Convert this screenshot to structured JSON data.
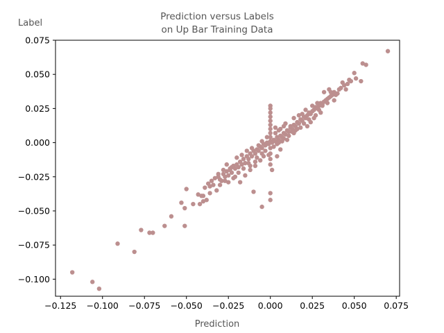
{
  "chart_data": {
    "type": "scatter",
    "title": [
      "Prediction versus Labels",
      "on Up Bar Training Data"
    ],
    "xlabel": "Prediction",
    "ylabel": "Label",
    "xlim": [
      -0.128,
      0.077
    ],
    "ylim": [
      -0.1125,
      0.075
    ],
    "x_ticks": [
      -0.125,
      -0.1,
      -0.075,
      -0.05,
      -0.025,
      0.0,
      0.025,
      0.05,
      0.075
    ],
    "x_tick_labels": [
      "−0.125",
      "−0.100",
      "−0.075",
      "−0.050",
      "−0.025",
      "0.000",
      "0.025",
      "0.050",
      "0.075"
    ],
    "y_ticks": [
      -0.1,
      -0.075,
      -0.05,
      -0.025,
      0.0,
      0.025,
      0.05,
      0.075
    ],
    "y_tick_labels": [
      "−0.100",
      "−0.075",
      "−0.050",
      "−0.025",
      "0.000",
      "0.025",
      "0.050",
      "0.075"
    ],
    "grid": false,
    "marker_color": "#bc8f8f",
    "points": [
      [
        -0.118,
        -0.095
      ],
      [
        -0.106,
        -0.102
      ],
      [
        -0.102,
        -0.107
      ],
      [
        -0.091,
        -0.074
      ],
      [
        -0.081,
        -0.08
      ],
      [
        -0.077,
        -0.064
      ],
      [
        -0.072,
        -0.066
      ],
      [
        -0.07,
        -0.066
      ],
      [
        -0.063,
        -0.061
      ],
      [
        -0.059,
        -0.054
      ],
      [
        -0.053,
        -0.044
      ],
      [
        -0.051,
        -0.048
      ],
      [
        -0.051,
        -0.061
      ],
      [
        -0.05,
        -0.034
      ],
      [
        -0.046,
        -0.045
      ],
      [
        -0.043,
        -0.038
      ],
      [
        -0.042,
        -0.045
      ],
      [
        -0.04,
        -0.039
      ],
      [
        -0.04,
        -0.043
      ],
      [
        -0.038,
        -0.042
      ],
      [
        -0.037,
        -0.03
      ],
      [
        -0.036,
        -0.032
      ],
      [
        -0.035,
        -0.028
      ],
      [
        -0.034,
        -0.031
      ],
      [
        -0.032,
        -0.035
      ],
      [
        -0.031,
        -0.025
      ],
      [
        -0.03,
        -0.027
      ],
      [
        -0.029,
        -0.028
      ],
      [
        -0.028,
        -0.023
      ],
      [
        -0.027,
        -0.025
      ],
      [
        -0.026,
        -0.021
      ],
      [
        -0.025,
        -0.024
      ],
      [
        -0.024,
        -0.02
      ],
      [
        -0.023,
        -0.022
      ],
      [
        -0.022,
        -0.017
      ],
      [
        -0.021,
        -0.019
      ],
      [
        -0.02,
        -0.016
      ],
      [
        -0.019,
        -0.018
      ],
      [
        -0.018,
        -0.014
      ],
      [
        -0.017,
        -0.016
      ],
      [
        -0.016,
        -0.012
      ],
      [
        -0.015,
        -0.015
      ],
      [
        -0.014,
        -0.01
      ],
      [
        -0.013,
        -0.012
      ],
      [
        -0.012,
        -0.008
      ],
      [
        -0.011,
        -0.01
      ],
      [
        -0.01,
        -0.006
      ],
      [
        -0.009,
        -0.008
      ],
      [
        -0.008,
        -0.005
      ],
      [
        -0.007,
        -0.006
      ],
      [
        -0.006,
        -0.003
      ],
      [
        -0.005,
        -0.004
      ],
      [
        -0.004,
        -0.001
      ],
      [
        -0.003,
        -0.002
      ],
      [
        -0.002,
        0.0
      ],
      [
        -0.001,
        -0.001
      ],
      [
        0.0,
        0.001
      ],
      [
        0.001,
        0.0
      ],
      [
        0.002,
        0.002
      ],
      [
        0.003,
        0.001
      ],
      [
        0.004,
        0.004
      ],
      [
        0.005,
        0.002
      ],
      [
        0.006,
        0.005
      ],
      [
        0.007,
        0.004
      ],
      [
        0.008,
        0.007
      ],
      [
        0.009,
        0.006
      ],
      [
        0.01,
        0.009
      ],
      [
        0.011,
        0.008
      ],
      [
        0.012,
        0.011
      ],
      [
        0.013,
        0.01
      ],
      [
        0.014,
        0.013
      ],
      [
        0.015,
        0.012
      ],
      [
        0.016,
        0.015
      ],
      [
        0.017,
        0.014
      ],
      [
        0.018,
        0.017
      ],
      [
        0.019,
        0.016
      ],
      [
        0.02,
        0.019
      ],
      [
        0.021,
        0.018
      ],
      [
        0.022,
        0.02
      ],
      [
        0.023,
        0.022
      ],
      [
        0.024,
        0.021
      ],
      [
        0.025,
        0.023
      ],
      [
        0.026,
        0.024
      ],
      [
        0.027,
        0.026
      ],
      [
        0.028,
        0.025
      ],
      [
        0.029,
        0.027
      ],
      [
        0.03,
        0.029
      ],
      [
        0.031,
        0.028
      ],
      [
        0.032,
        0.03
      ],
      [
        0.033,
        0.031
      ],
      [
        0.034,
        0.032
      ],
      [
        0.035,
        0.033
      ],
      [
        0.036,
        0.034
      ],
      [
        0.037,
        0.035
      ],
      [
        0.038,
        0.037
      ],
      [
        0.04,
        0.036
      ],
      [
        0.042,
        0.04
      ],
      [
        0.044,
        0.042
      ],
      [
        0.045,
        0.039
      ],
      [
        0.046,
        0.043
      ],
      [
        0.048,
        0.045
      ],
      [
        0.05,
        0.051
      ],
      [
        0.051,
        0.047
      ],
      [
        0.054,
        0.045
      ],
      [
        0.055,
        0.058
      ],
      [
        0.057,
        0.057
      ],
      [
        0.07,
        0.067
      ],
      [
        -0.015,
        -0.024
      ],
      [
        -0.018,
        -0.029
      ],
      [
        -0.012,
        -0.02
      ],
      [
        -0.009,
        -0.017
      ],
      [
        -0.006,
        -0.013
      ],
      [
        -0.004,
        -0.01
      ],
      [
        -0.01,
        -0.036
      ],
      [
        -0.005,
        -0.047
      ],
      [
        0.0,
        -0.042
      ],
      [
        0.0,
        -0.037
      ],
      [
        0.0,
        0.027
      ],
      [
        0.0,
        0.025
      ],
      [
        0.0,
        0.022
      ],
      [
        0.0,
        0.019
      ],
      [
        0.0,
        0.016
      ],
      [
        0.0,
        0.013
      ],
      [
        0.0,
        0.01
      ],
      [
        0.0,
        0.007
      ],
      [
        0.0,
        0.004
      ],
      [
        0.0,
        -0.004
      ],
      [
        0.0,
        -0.008
      ],
      [
        0.0,
        -0.012
      ],
      [
        0.0,
        -0.016
      ],
      [
        0.001,
        -0.02
      ],
      [
        0.004,
        -0.01
      ],
      [
        0.006,
        -0.005
      ],
      [
        0.01,
        0.002
      ],
      [
        0.012,
        0.012
      ],
      [
        0.014,
        0.007
      ],
      [
        0.016,
        0.01
      ],
      [
        0.019,
        0.021
      ],
      [
        0.022,
        0.012
      ],
      [
        0.024,
        0.015
      ],
      [
        0.027,
        0.02
      ],
      [
        0.03,
        0.022
      ],
      [
        0.032,
        0.037
      ],
      [
        0.035,
        0.039
      ],
      [
        0.038,
        0.031
      ],
      [
        0.041,
        0.039
      ],
      [
        -0.02,
        -0.011
      ],
      [
        -0.023,
        -0.018
      ],
      [
        -0.026,
        -0.016
      ],
      [
        -0.028,
        -0.02
      ],
      [
        -0.031,
        -0.023
      ],
      [
        -0.033,
        -0.026
      ],
      [
        -0.036,
        -0.037
      ],
      [
        -0.039,
        -0.033
      ],
      [
        -0.041,
        -0.039
      ],
      [
        -0.025,
        -0.029
      ],
      [
        -0.022,
        -0.026
      ],
      [
        -0.019,
        -0.022
      ],
      [
        -0.016,
        -0.019
      ],
      [
        -0.013,
        -0.015
      ],
      [
        -0.008,
        -0.011
      ],
      [
        -0.005,
        -0.008
      ],
      [
        -0.003,
        -0.006
      ],
      [
        0.002,
        -0.003
      ],
      [
        0.005,
        0.0
      ],
      [
        0.008,
        0.003
      ],
      [
        0.011,
        0.005
      ],
      [
        0.013,
        0.008
      ],
      [
        0.015,
        0.009
      ],
      [
        0.018,
        0.011
      ],
      [
        0.02,
        0.014
      ],
      [
        0.023,
        0.017
      ],
      [
        0.026,
        0.018
      ],
      [
        0.029,
        0.024
      ],
      [
        0.031,
        0.027
      ],
      [
        0.034,
        0.029
      ],
      [
        0.009,
        0.014
      ],
      [
        0.006,
        0.01
      ],
      [
        0.003,
        0.007
      ],
      [
        -0.002,
        0.004
      ],
      [
        -0.005,
        0.001
      ],
      [
        -0.007,
        -0.002
      ],
      [
        -0.011,
        -0.004
      ],
      [
        -0.014,
        -0.006
      ],
      [
        -0.017,
        -0.009
      ],
      [
        0.005,
        0.009
      ],
      [
        0.003,
        0.011
      ],
      [
        0.008,
        0.012
      ],
      [
        0.004,
        -0.001
      ],
      [
        0.007,
        0.001
      ],
      [
        -0.001,
        -0.009
      ],
      [
        -0.009,
        -0.014
      ],
      [
        -0.012,
        -0.017
      ],
      [
        -0.021,
        -0.025
      ],
      [
        -0.024,
        -0.019
      ],
      [
        -0.027,
        -0.028
      ],
      [
        -0.03,
        -0.031
      ],
      [
        0.028,
        0.029
      ],
      [
        0.025,
        0.027
      ],
      [
        0.021,
        0.024
      ],
      [
        0.017,
        0.02
      ],
      [
        0.014,
        0.018
      ],
      [
        0.036,
        0.037
      ],
      [
        0.039,
        0.035
      ],
      [
        0.043,
        0.044
      ],
      [
        0.047,
        0.046
      ]
    ]
  }
}
